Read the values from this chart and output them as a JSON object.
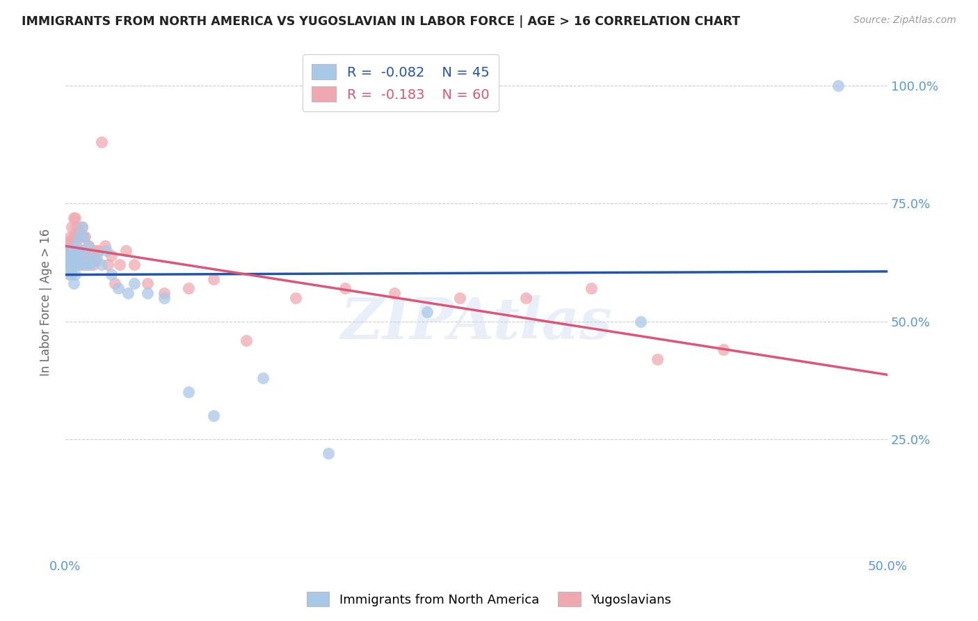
{
  "title": "IMMIGRANTS FROM NORTH AMERICA VS YUGOSLAVIAN IN LABOR FORCE | AGE > 16 CORRELATION CHART",
  "source": "Source: ZipAtlas.com",
  "ylabel": "In Labor Force | Age > 16",
  "blue_color": "#a8c8e8",
  "pink_color": "#f0a8b0",
  "trendline_blue": "#2255aa",
  "trendline_pink": "#dd5577",
  "watermark": "ZIPAtlas",
  "xlim": [
    0.0,
    0.5
  ],
  "ylim": [
    0.0,
    1.08
  ],
  "xtick_positions": [
    0.0,
    0.5
  ],
  "xtick_labels": [
    "0.0%",
    "50.0%"
  ],
  "ytick_positions": [
    0.0,
    0.25,
    0.5,
    0.75,
    1.0
  ],
  "ytick_labels_right": [
    "",
    "25.0%",
    "50.0%",
    "75.0%",
    "100.0%"
  ],
  "grid_yticks": [
    0.25,
    0.5,
    0.75,
    1.0
  ],
  "blue_scatter_x": [
    0.001,
    0.001,
    0.002,
    0.002,
    0.002,
    0.003,
    0.003,
    0.003,
    0.004,
    0.004,
    0.004,
    0.005,
    0.005,
    0.006,
    0.006,
    0.006,
    0.007,
    0.007,
    0.008,
    0.008,
    0.009,
    0.01,
    0.01,
    0.011,
    0.012,
    0.013,
    0.014,
    0.015,
    0.017,
    0.019,
    0.022,
    0.025,
    0.028,
    0.032,
    0.038,
    0.042,
    0.05,
    0.06,
    0.075,
    0.09,
    0.12,
    0.16,
    0.22,
    0.35,
    0.47
  ],
  "blue_scatter_y": [
    0.63,
    0.62,
    0.64,
    0.62,
    0.6,
    0.65,
    0.63,
    0.61,
    0.64,
    0.62,
    0.6,
    0.65,
    0.58,
    0.66,
    0.63,
    0.6,
    0.65,
    0.62,
    0.68,
    0.63,
    0.62,
    0.7,
    0.65,
    0.68,
    0.64,
    0.62,
    0.66,
    0.62,
    0.63,
    0.64,
    0.62,
    0.65,
    0.6,
    0.57,
    0.56,
    0.58,
    0.56,
    0.55,
    0.35,
    0.3,
    0.38,
    0.22,
    0.52,
    0.5,
    1.0
  ],
  "pink_scatter_x": [
    0.001,
    0.001,
    0.002,
    0.002,
    0.002,
    0.003,
    0.003,
    0.003,
    0.004,
    0.004,
    0.004,
    0.005,
    0.005,
    0.005,
    0.006,
    0.006,
    0.006,
    0.007,
    0.007,
    0.007,
    0.008,
    0.008,
    0.008,
    0.009,
    0.009,
    0.01,
    0.01,
    0.011,
    0.011,
    0.012,
    0.012,
    0.013,
    0.014,
    0.015,
    0.016,
    0.017,
    0.018,
    0.019,
    0.02,
    0.022,
    0.024,
    0.026,
    0.028,
    0.03,
    0.033,
    0.037,
    0.042,
    0.05,
    0.06,
    0.075,
    0.09,
    0.11,
    0.14,
    0.17,
    0.2,
    0.24,
    0.28,
    0.32,
    0.36,
    0.4
  ],
  "pink_scatter_y": [
    0.64,
    0.63,
    0.66,
    0.65,
    0.63,
    0.68,
    0.67,
    0.65,
    0.7,
    0.67,
    0.65,
    0.72,
    0.68,
    0.65,
    0.72,
    0.68,
    0.65,
    0.7,
    0.66,
    0.63,
    0.69,
    0.65,
    0.62,
    0.68,
    0.64,
    0.7,
    0.65,
    0.68,
    0.62,
    0.68,
    0.64,
    0.63,
    0.66,
    0.63,
    0.64,
    0.62,
    0.65,
    0.63,
    0.65,
    0.88,
    0.66,
    0.62,
    0.64,
    0.58,
    0.62,
    0.65,
    0.62,
    0.58,
    0.56,
    0.57,
    0.59,
    0.46,
    0.55,
    0.57,
    0.56,
    0.55,
    0.55,
    0.57,
    0.42,
    0.44
  ]
}
